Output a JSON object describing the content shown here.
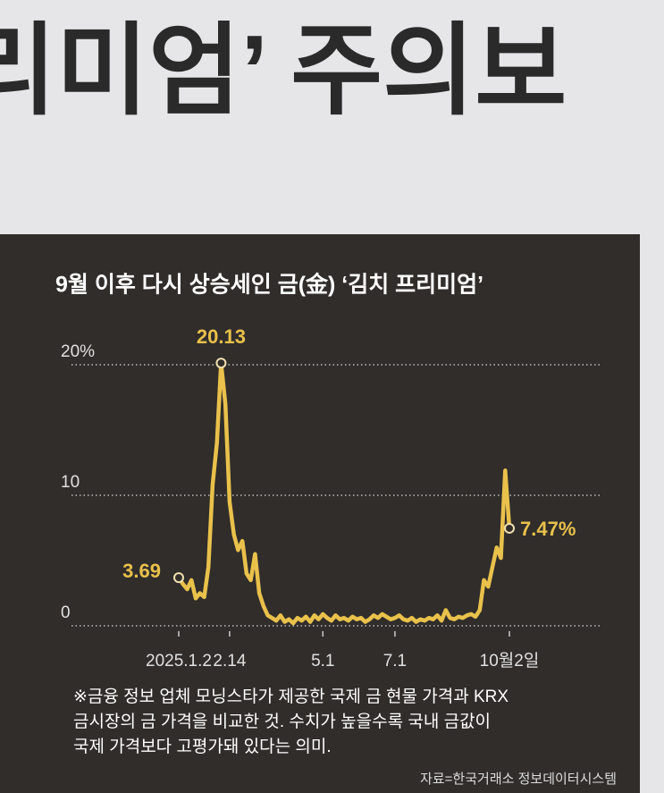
{
  "headline": "리미엄’ 주의보",
  "chart_data": {
    "type": "line",
    "title": "9월 이후 다시 상승세인 금(金) ‘김치 프리미엄’",
    "categories": [
      "2025.1.2",
      null,
      null,
      null,
      null,
      null,
      null,
      null,
      null,
      null,
      null,
      null,
      "2.14",
      null,
      null,
      null,
      null,
      null,
      null,
      null,
      null,
      null,
      null,
      null,
      null,
      null,
      null,
      null,
      null,
      null,
      null,
      null,
      null,
      null,
      "5.1",
      null,
      null,
      null,
      null,
      null,
      null,
      null,
      null,
      null,
      null,
      null,
      null,
      null,
      null,
      null,
      null,
      "7.1",
      null,
      null,
      null,
      null,
      null,
      null,
      null,
      null,
      null,
      null,
      null,
      null,
      null,
      null,
      null,
      null,
      null,
      null,
      null,
      null,
      null,
      null,
      null,
      null,
      null,
      null,
      "10월2일"
    ],
    "values": [
      3.69,
      3.2,
      2.8,
      3.5,
      2.1,
      2.5,
      2.2,
      4.5,
      10.8,
      14,
      20.13,
      17,
      9.5,
      7,
      5.8,
      6.5,
      4,
      3.5,
      5.5,
      2.5,
      1.5,
      0.8,
      0.6,
      0.4,
      0.8,
      0.3,
      0.5,
      0.2,
      0.6,
      0.4,
      0.7,
      0.3,
      0.8,
      0.5,
      0.9,
      0.6,
      0.4,
      0.8,
      0.5,
      0.6,
      0.4,
      0.7,
      0.5,
      0.6,
      0.3,
      0.5,
      0.8,
      0.6,
      0.9,
      0.7,
      0.5,
      0.6,
      0.8,
      0.5,
      0.4,
      0.6,
      0.3,
      0.5,
      0.4,
      0.6,
      0.5,
      0.8,
      0.4,
      1.2,
      0.6,
      0.5,
      0.7,
      0.6,
      0.8,
      0.9,
      0.7,
      1.2,
      3.5,
      3.0,
      4.5,
      6,
      5.2,
      11.9,
      7.47
    ],
    "value_labels": [
      "3.69",
      null,
      null,
      null,
      null,
      null,
      null,
      null,
      null,
      null,
      "20.13",
      null,
      null,
      null,
      null,
      null,
      null,
      null,
      null,
      null,
      null,
      null,
      null,
      null,
      null,
      null,
      null,
      null,
      null,
      null,
      null,
      null,
      null,
      null,
      null,
      null,
      null,
      null,
      null,
      null,
      null,
      null,
      null,
      null,
      null,
      null,
      null,
      null,
      null,
      null,
      null,
      null,
      null,
      null,
      null,
      null,
      null,
      null,
      null,
      null,
      null,
      null,
      null,
      null,
      null,
      null,
      null,
      null,
      null,
      null,
      null,
      null,
      null,
      null,
      null,
      null,
      null,
      null,
      "7.47%"
    ],
    "color": "#e9c14b",
    "ylim": [
      0,
      20
    ],
    "yticks": [
      0,
      10,
      {
        "value": 20,
        "label": "20%"
      }
    ],
    "grid": true,
    "notes": [
      "※금융 정보 업체 모닝스타가 제공한 국제 금 현물 가격과 KRX",
      "금시장의 금 가격을 비교한 것. 수치가 높을수록 국내 금값이",
      "국제 가격보다 고평가돼 있다는 의미."
    ],
    "source": "자료=한국거래소 정보데이터시스템"
  }
}
